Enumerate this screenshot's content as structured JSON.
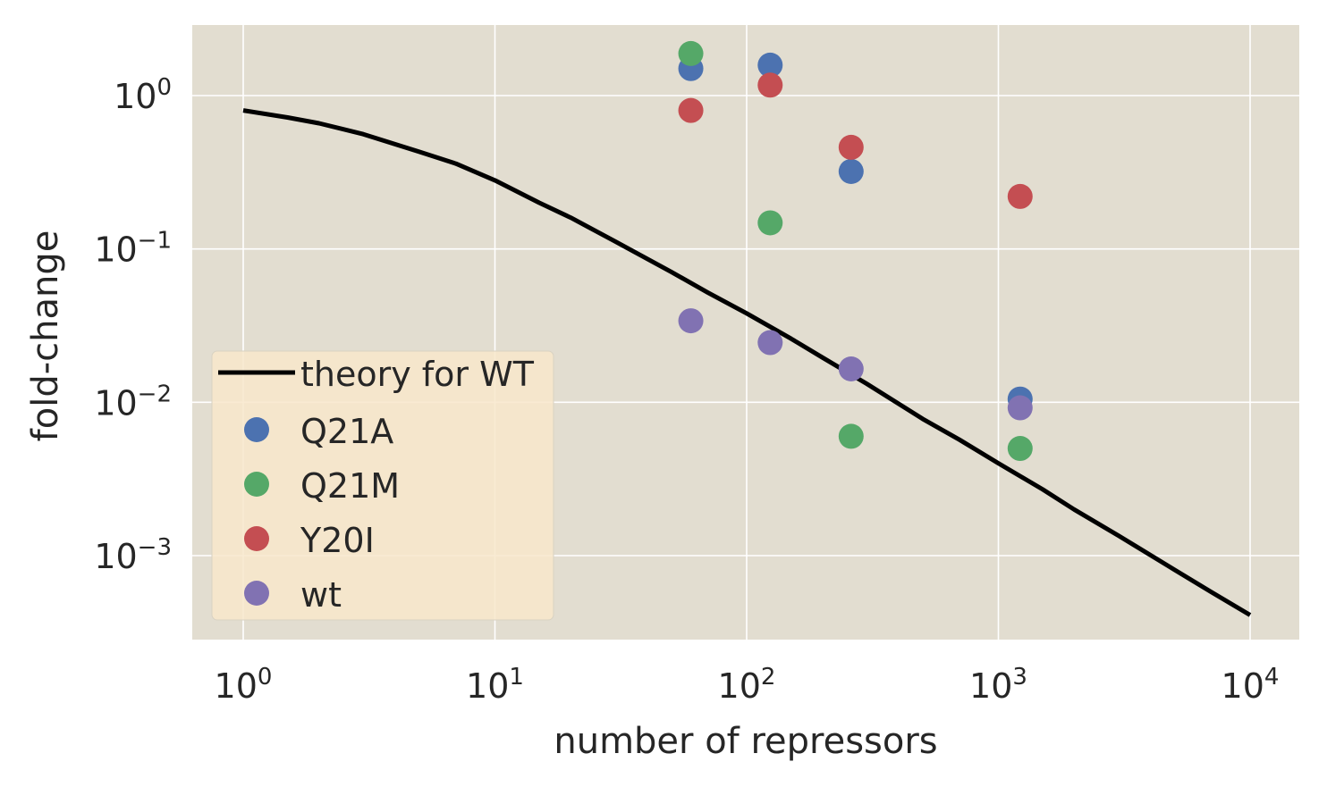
{
  "colors": {
    "background": "#e2ddd0",
    "grid": "#ffffff",
    "legend_bg": "#f8e8cb",
    "theory": "#000000",
    "Q21A": "#4c72b0",
    "Q21M": "#55a868",
    "Y20I": "#c44e52",
    "wt": "#8172b2"
  },
  "chart_data": {
    "type": "scatter",
    "xlabel": "number of repressors",
    "ylabel": "fold-change",
    "xscale": "log",
    "yscale": "log",
    "xlim": [
      0.6,
      15000
    ],
    "ylim": [
      0.0002,
      2.7
    ],
    "grid": true,
    "legend_position": "lower-left",
    "x_ticks": [
      {
        "base": "10",
        "exp": "0",
        "value": 1
      },
      {
        "base": "10",
        "exp": "1",
        "value": 10
      },
      {
        "base": "10",
        "exp": "2",
        "value": 100
      },
      {
        "base": "10",
        "exp": "3",
        "value": 1000
      },
      {
        "base": "10",
        "exp": "4",
        "value": 10000
      }
    ],
    "y_ticks": [
      {
        "base": "10",
        "exp": "0",
        "value": 1
      },
      {
        "base": "10",
        "exp": "−1",
        "value": 0.1
      },
      {
        "base": "10",
        "exp": "−2",
        "value": 0.01
      },
      {
        "base": "10",
        "exp": "−3",
        "value": 0.001
      }
    ],
    "theory": {
      "name": "theory for WT",
      "x": [
        1,
        1.5,
        2,
        3,
        5,
        7,
        10,
        15,
        20,
        30,
        50,
        70,
        100,
        150,
        200,
        300,
        500,
        700,
        1000,
        1500,
        2000,
        3000,
        5000,
        7000,
        10000
      ],
      "y": [
        0.8,
        0.72,
        0.66,
        0.56,
        0.43,
        0.36,
        0.28,
        0.2,
        0.16,
        0.112,
        0.071,
        0.052,
        0.038,
        0.026,
        0.0196,
        0.0132,
        0.0078,
        0.0057,
        0.004,
        0.0027,
        0.002,
        0.00135,
        0.00081,
        0.00058,
        0.00041
      ]
    },
    "series": [
      {
        "name": "Q21A",
        "x": [
          60,
          124,
          260,
          1220
        ],
        "y": [
          1.5,
          1.58,
          0.32,
          0.0105
        ]
      },
      {
        "name": "Q21M",
        "x": [
          60,
          124,
          260,
          1220
        ],
        "y": [
          1.88,
          0.148,
          0.006,
          0.005
        ]
      },
      {
        "name": "Y20I",
        "x": [
          60,
          124,
          260,
          1220
        ],
        "y": [
          0.8,
          1.17,
          0.46,
          0.22
        ]
      },
      {
        "name": "wt",
        "x": [
          60,
          124,
          260,
          1220
        ],
        "y": [
          0.034,
          0.0245,
          0.0165,
          0.0092
        ]
      }
    ]
  }
}
